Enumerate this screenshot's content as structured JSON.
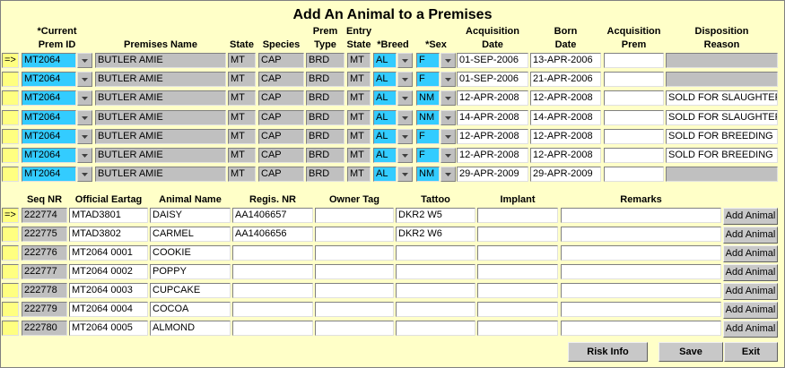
{
  "title": "Add An Animal to a Premises",
  "premises_table": {
    "headers": [
      [
        "*Current",
        "Prem ID"
      ],
      [
        "Premises Name"
      ],
      [
        "State"
      ],
      [
        "Species"
      ],
      [
        "Prem",
        "Type"
      ],
      [
        "Entry",
        "State"
      ],
      [
        "*Breed"
      ],
      [
        "*Sex"
      ],
      [
        "Acquisition",
        "Date"
      ],
      [
        "Born",
        "Date"
      ],
      [
        "Acquisition",
        "Prem"
      ],
      [
        "Disposition",
        "Reason"
      ]
    ],
    "rows": [
      {
        "marker": "=>",
        "prem_id": "MT2064",
        "premises_name": "BUTLER AMIE",
        "state": "MT",
        "species": "CAP",
        "prem_type": "BRD",
        "entry_state": "MT",
        "breed": "AL",
        "sex": "F",
        "acquisition_date": "01-SEP-2006",
        "born_date": "13-APR-2006"
      },
      {
        "prem_id": "MT2064",
        "premises_name": "BUTLER AMIE",
        "state": "MT",
        "species": "CAP",
        "prem_type": "BRD",
        "entry_state": "MT",
        "breed": "AL",
        "sex": "F",
        "acquisition_date": "01-SEP-2006",
        "born_date": "21-APR-2006"
      },
      {
        "prem_id": "MT2064",
        "premises_name": "BUTLER AMIE",
        "state": "MT",
        "species": "CAP",
        "prem_type": "BRD",
        "entry_state": "MT",
        "breed": "AL",
        "sex": "NM",
        "acquisition_date": "12-APR-2008",
        "born_date": "12-APR-2008",
        "disposition_reason": "SOLD FOR SLAUGHTER"
      },
      {
        "prem_id": "MT2064",
        "premises_name": "BUTLER AMIE",
        "state": "MT",
        "species": "CAP",
        "prem_type": "BRD",
        "entry_state": "MT",
        "breed": "AL",
        "sex": "NM",
        "acquisition_date": "14-APR-2008",
        "born_date": "14-APR-2008",
        "disposition_reason": "SOLD FOR SLAUGHTER"
      },
      {
        "prem_id": "MT2064",
        "premises_name": "BUTLER AMIE",
        "state": "MT",
        "species": "CAP",
        "prem_type": "BRD",
        "entry_state": "MT",
        "breed": "AL",
        "sex": "F",
        "acquisition_date": "12-APR-2008",
        "born_date": "12-APR-2008",
        "disposition_reason": "SOLD FOR BREEDING"
      },
      {
        "prem_id": "MT2064",
        "premises_name": "BUTLER AMIE",
        "state": "MT",
        "species": "CAP",
        "prem_type": "BRD",
        "entry_state": "MT",
        "breed": "AL",
        "sex": "F",
        "acquisition_date": "12-APR-2008",
        "born_date": "12-APR-2008",
        "disposition_reason": "SOLD FOR BREEDING"
      },
      {
        "prem_id": "MT2064",
        "premises_name": "BUTLER AMIE",
        "state": "MT",
        "species": "CAP",
        "prem_type": "BRD",
        "entry_state": "MT",
        "breed": "AL",
        "sex": "NM",
        "acquisition_date": "29-APR-2009",
        "born_date": "29-APR-2009"
      }
    ]
  },
  "animal_table": {
    "headers": [
      "Seq NR",
      "Official Eartag",
      "Animal Name",
      "Regis. NR",
      "Owner Tag",
      "Tattoo",
      "Implant",
      "Remarks"
    ],
    "rows": [
      {
        "marker": "=>",
        "seq_nr": "222774",
        "official_eartag": "MTAD3801",
        "animal_name": "DAISY",
        "regis_nr": "AA1406657",
        "tattoo": "DKR2 W5",
        "button": "Add Animal"
      },
      {
        "seq_nr": "222775",
        "official_eartag": "MTAD3802",
        "animal_name": "CARMEL",
        "regis_nr": "AA1406656",
        "tattoo": "DKR2 W6",
        "button": "Add Animal"
      },
      {
        "seq_nr": "222776",
        "official_eartag": "MT2064 0001",
        "animal_name": "COOKIE",
        "button": "Add Animal"
      },
      {
        "seq_nr": "222777",
        "official_eartag": "MT2064 0002",
        "animal_name": "POPPY",
        "button": "Add Animal"
      },
      {
        "seq_nr": "222778",
        "official_eartag": "MT2064 0003",
        "animal_name": "CUPCAKE",
        "button": "Add Animal"
      },
      {
        "seq_nr": "222779",
        "official_eartag": "MT2064 0004",
        "animal_name": "COCOA",
        "button": "Add Animal"
      },
      {
        "seq_nr": "222780",
        "official_eartag": "MT2064 0005",
        "animal_name": "ALMOND",
        "button": "Add Animal"
      }
    ]
  },
  "buttons": [
    "Risk Info",
    "Save",
    "Exit"
  ]
}
